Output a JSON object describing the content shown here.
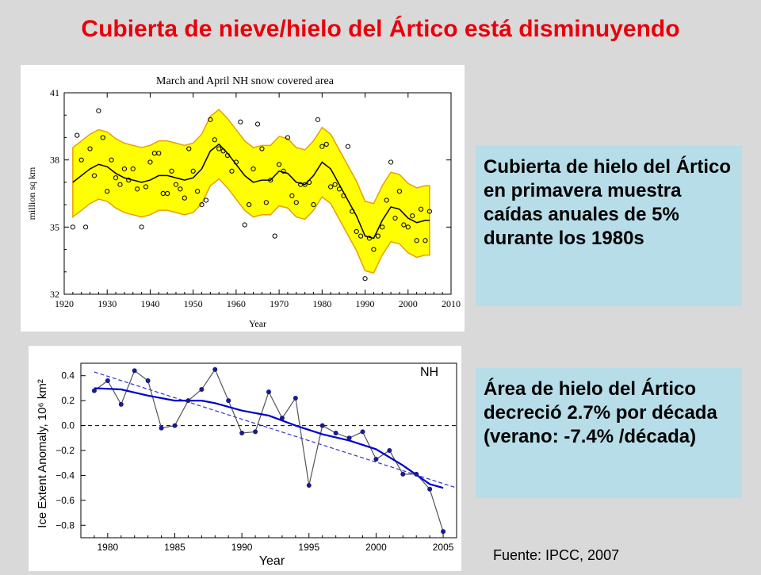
{
  "slide": {
    "title": "Cubierta de nieve/hielo del Ártico está disminuyendo",
    "callout1": "Cubierta de hielo del Ártico en primavera muestra caídas anuales de 5% durante los 1980s",
    "callout2": "Área de hielo del Ártico decreció 2.7% por década (verano: -7.4% /década)",
    "source": "Fuente: IPCC, 2007"
  },
  "chart_data": [
    {
      "type": "scatter",
      "title": "March and April NH snow covered area",
      "xlabel": "Year",
      "ylabel": "million sq km",
      "xlim": [
        1920,
        2010
      ],
      "ylim": [
        32,
        41
      ],
      "xticks": [
        1920,
        1930,
        1940,
        1950,
        1960,
        1970,
        1980,
        1990,
        2000,
        2010
      ],
      "yticks": [
        32,
        35,
        38,
        41
      ],
      "colors": {
        "band": "#ffff00",
        "band_edge": "#e8a000",
        "line": "#000000"
      },
      "points": [
        [
          1922,
          35.0
        ],
        [
          1923,
          39.1
        ],
        [
          1924,
          38.0
        ],
        [
          1925,
          35.0
        ],
        [
          1926,
          38.5
        ],
        [
          1927,
          37.3
        ],
        [
          1928,
          40.2
        ],
        [
          1929,
          39.0
        ],
        [
          1930,
          36.6
        ],
        [
          1931,
          38.0
        ],
        [
          1932,
          37.2
        ],
        [
          1933,
          36.9
        ],
        [
          1934,
          37.6
        ],
        [
          1935,
          37.1
        ],
        [
          1936,
          37.6
        ],
        [
          1937,
          36.7
        ],
        [
          1938,
          35.0
        ],
        [
          1939,
          36.8
        ],
        [
          1940,
          37.9
        ],
        [
          1941,
          38.3
        ],
        [
          1942,
          38.3
        ],
        [
          1943,
          36.5
        ],
        [
          1944,
          36.5
        ],
        [
          1945,
          37.5
        ],
        [
          1946,
          36.9
        ],
        [
          1947,
          36.7
        ],
        [
          1948,
          36.3
        ],
        [
          1949,
          38.5
        ],
        [
          1950,
          37.5
        ],
        [
          1951,
          36.6
        ],
        [
          1952,
          36.0
        ],
        [
          1953,
          36.2
        ],
        [
          1954,
          39.8
        ],
        [
          1955,
          38.9
        ],
        [
          1956,
          38.5
        ],
        [
          1957,
          38.4
        ],
        [
          1958,
          38.2
        ],
        [
          1959,
          37.5
        ],
        [
          1960,
          37.9
        ],
        [
          1961,
          39.7
        ],
        [
          1962,
          35.1
        ],
        [
          1963,
          36.0
        ],
        [
          1964,
          37.6
        ],
        [
          1965,
          39.6
        ],
        [
          1966,
          38.5
        ],
        [
          1967,
          36.1
        ],
        [
          1968,
          37.1
        ],
        [
          1969,
          34.6
        ],
        [
          1970,
          37.8
        ],
        [
          1971,
          37.5
        ],
        [
          1972,
          39.0
        ],
        [
          1973,
          36.4
        ],
        [
          1974,
          36.1
        ],
        [
          1975,
          36.9
        ],
        [
          1976,
          36.9
        ],
        [
          1977,
          37.0
        ],
        [
          1978,
          36.0
        ],
        [
          1979,
          39.8
        ],
        [
          1980,
          38.6
        ],
        [
          1981,
          38.7
        ],
        [
          1982,
          36.8
        ],
        [
          1983,
          36.9
        ],
        [
          1984,
          36.7
        ],
        [
          1985,
          36.4
        ],
        [
          1986,
          38.6
        ],
        [
          1987,
          35.7
        ],
        [
          1988,
          34.8
        ],
        [
          1989,
          34.6
        ],
        [
          1990,
          32.7
        ],
        [
          1991,
          34.5
        ],
        [
          1992,
          34.0
        ],
        [
          1993,
          34.6
        ],
        [
          1994,
          35.0
        ],
        [
          1995,
          36.2
        ],
        [
          1996,
          37.9
        ],
        [
          1997,
          35.4
        ],
        [
          1998,
          36.6
        ],
        [
          1999,
          35.1
        ],
        [
          2000,
          35.0
        ],
        [
          2001,
          35.5
        ],
        [
          2002,
          34.4
        ],
        [
          2003,
          35.8
        ],
        [
          2004,
          34.4
        ],
        [
          2005,
          35.7
        ]
      ],
      "smooth": [
        [
          1922,
          37.0
        ],
        [
          1924,
          37.3
        ],
        [
          1926,
          37.6
        ],
        [
          1928,
          37.8
        ],
        [
          1930,
          37.7
        ],
        [
          1932,
          37.4
        ],
        [
          1934,
          37.2
        ],
        [
          1936,
          37.1
        ],
        [
          1938,
          37.0
        ],
        [
          1940,
          37.1
        ],
        [
          1942,
          37.3
        ],
        [
          1944,
          37.3
        ],
        [
          1946,
          37.2
        ],
        [
          1948,
          37.1
        ],
        [
          1950,
          37.2
        ],
        [
          1952,
          37.6
        ],
        [
          1954,
          38.4
        ],
        [
          1956,
          38.7
        ],
        [
          1958,
          38.3
        ],
        [
          1960,
          37.8
        ],
        [
          1962,
          37.3
        ],
        [
          1964,
          37.0
        ],
        [
          1966,
          37.1
        ],
        [
          1968,
          37.1
        ],
        [
          1970,
          37.5
        ],
        [
          1972,
          37.4
        ],
        [
          1974,
          37.0
        ],
        [
          1976,
          36.9
        ],
        [
          1978,
          37.3
        ],
        [
          1980,
          37.9
        ],
        [
          1982,
          37.6
        ],
        [
          1984,
          36.9
        ],
        [
          1986,
          36.2
        ],
        [
          1988,
          35.5
        ],
        [
          1990,
          34.6
        ],
        [
          1992,
          34.5
        ],
        [
          1994,
          35.3
        ],
        [
          1996,
          35.9
        ],
        [
          1998,
          35.8
        ],
        [
          2000,
          35.4
        ],
        [
          2002,
          35.2
        ],
        [
          2004,
          35.3
        ],
        [
          2005,
          35.3
        ]
      ],
      "band_halfwidth": 1.55
    },
    {
      "type": "line",
      "label": "NH",
      "xlabel": "Year",
      "ylabel": "Ice Extent Anomaly, 10⁶ km²",
      "xlim": [
        1978,
        2006
      ],
      "ylim": [
        -0.9,
        0.5
      ],
      "xticks": [
        1980,
        1985,
        1990,
        1995,
        2000,
        2005
      ],
      "yticks": [
        0.4,
        0.2,
        0.0,
        -0.2,
        -0.4,
        -0.6,
        -0.8
      ],
      "colors": {
        "data": "#555555",
        "marker": "#1a1a8a",
        "smooth": "#0000cc",
        "trend": "#3333cc"
      },
      "x": [
        1979,
        1980,
        1981,
        1982,
        1983,
        1984,
        1985,
        1986,
        1987,
        1988,
        1989,
        1990,
        1991,
        1992,
        1993,
        1994,
        1995,
        1996,
        1997,
        1998,
        1999,
        2000,
        2001,
        2002,
        2003,
        2004,
        2005
      ],
      "y": [
        0.28,
        0.36,
        0.17,
        0.44,
        0.36,
        -0.02,
        0.0,
        0.2,
        0.29,
        0.45,
        0.2,
        -0.06,
        -0.05,
        0.27,
        0.06,
        0.22,
        -0.48,
        0.0,
        -0.06,
        -0.1,
        -0.05,
        -0.27,
        -0.2,
        -0.39,
        -0.39,
        -0.51,
        -0.85
      ],
      "smooth": [
        [
          1979,
          0.3
        ],
        [
          1981,
          0.29
        ],
        [
          1983,
          0.24
        ],
        [
          1985,
          0.2
        ],
        [
          1987,
          0.2
        ],
        [
          1988,
          0.18
        ],
        [
          1990,
          0.12
        ],
        [
          1992,
          0.08
        ],
        [
          1994,
          0.0
        ],
        [
          1996,
          -0.07
        ],
        [
          1998,
          -0.12
        ],
        [
          2000,
          -0.19
        ],
        [
          2002,
          -0.32
        ],
        [
          2004,
          -0.47
        ],
        [
          2005,
          -0.5
        ]
      ],
      "trend": [
        [
          1979,
          0.43
        ],
        [
          2006,
          -0.5
        ]
      ]
    }
  ]
}
